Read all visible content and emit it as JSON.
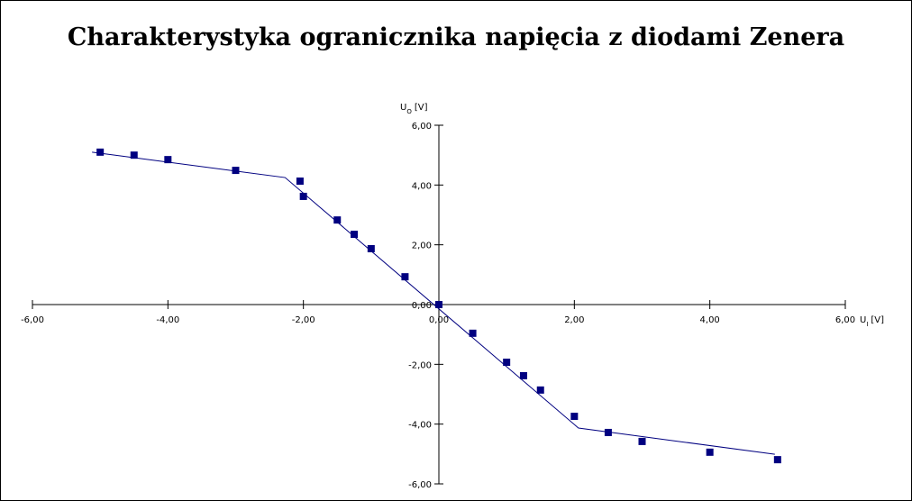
{
  "chart_data": {
    "type": "scatter",
    "title": "Charakterystyka ogranicznika napięcia z diodami Zenera",
    "x_label": {
      "symbol": "U",
      "subscript": "I",
      "unit": "[V]"
    },
    "y_label": {
      "symbol": "U",
      "subscript": "O",
      "unit": "[V]"
    },
    "x": [
      -5,
      -4.5,
      -4,
      -3,
      -2.05,
      -2,
      -1.5,
      -1.25,
      -1,
      -0.5,
      0,
      0.5,
      1,
      1.25,
      1.5,
      2,
      2.5,
      3,
      4,
      5
    ],
    "series": [
      {
        "color": "#000080",
        "values": [
          5.1,
          5.0,
          4.85,
          4.49,
          4.13,
          3.62,
          2.83,
          2.35,
          1.87,
          0.93,
          0,
          -0.96,
          -1.93,
          -2.38,
          -2.86,
          -3.74,
          -4.28,
          -4.58,
          -4.94,
          -5.19
        ]
      }
    ],
    "fit_line": {
      "color": "#000080",
      "x": [
        -5.12,
        -2.27,
        2.06,
        4.96
      ],
      "values": [
        5.1,
        4.25,
        -4.13,
        -5.01
      ]
    },
    "xlim": [
      -6,
      6
    ],
    "ylim": [
      -6,
      6
    ],
    "xticks": [
      {
        "value": -6,
        "label": "-6,00"
      },
      {
        "value": -4,
        "label": "-4,00"
      },
      {
        "value": -2,
        "label": "-2,00"
      },
      {
        "value": 0,
        "label": "0,00"
      },
      {
        "value": 2,
        "label": "2,00"
      },
      {
        "value": 4,
        "label": "4,00"
      },
      {
        "value": 6,
        "label": "6,00"
      }
    ],
    "yticks": [
      {
        "value": -6,
        "label": "-6,00"
      },
      {
        "value": -4,
        "label": "-4,00"
      },
      {
        "value": -2,
        "label": "-2,00"
      },
      {
        "value": 0,
        "label": "0,00"
      },
      {
        "value": 2,
        "label": "2,00"
      },
      {
        "value": 4,
        "label": "4,00"
      },
      {
        "value": 6,
        "label": "6,00"
      }
    ]
  }
}
